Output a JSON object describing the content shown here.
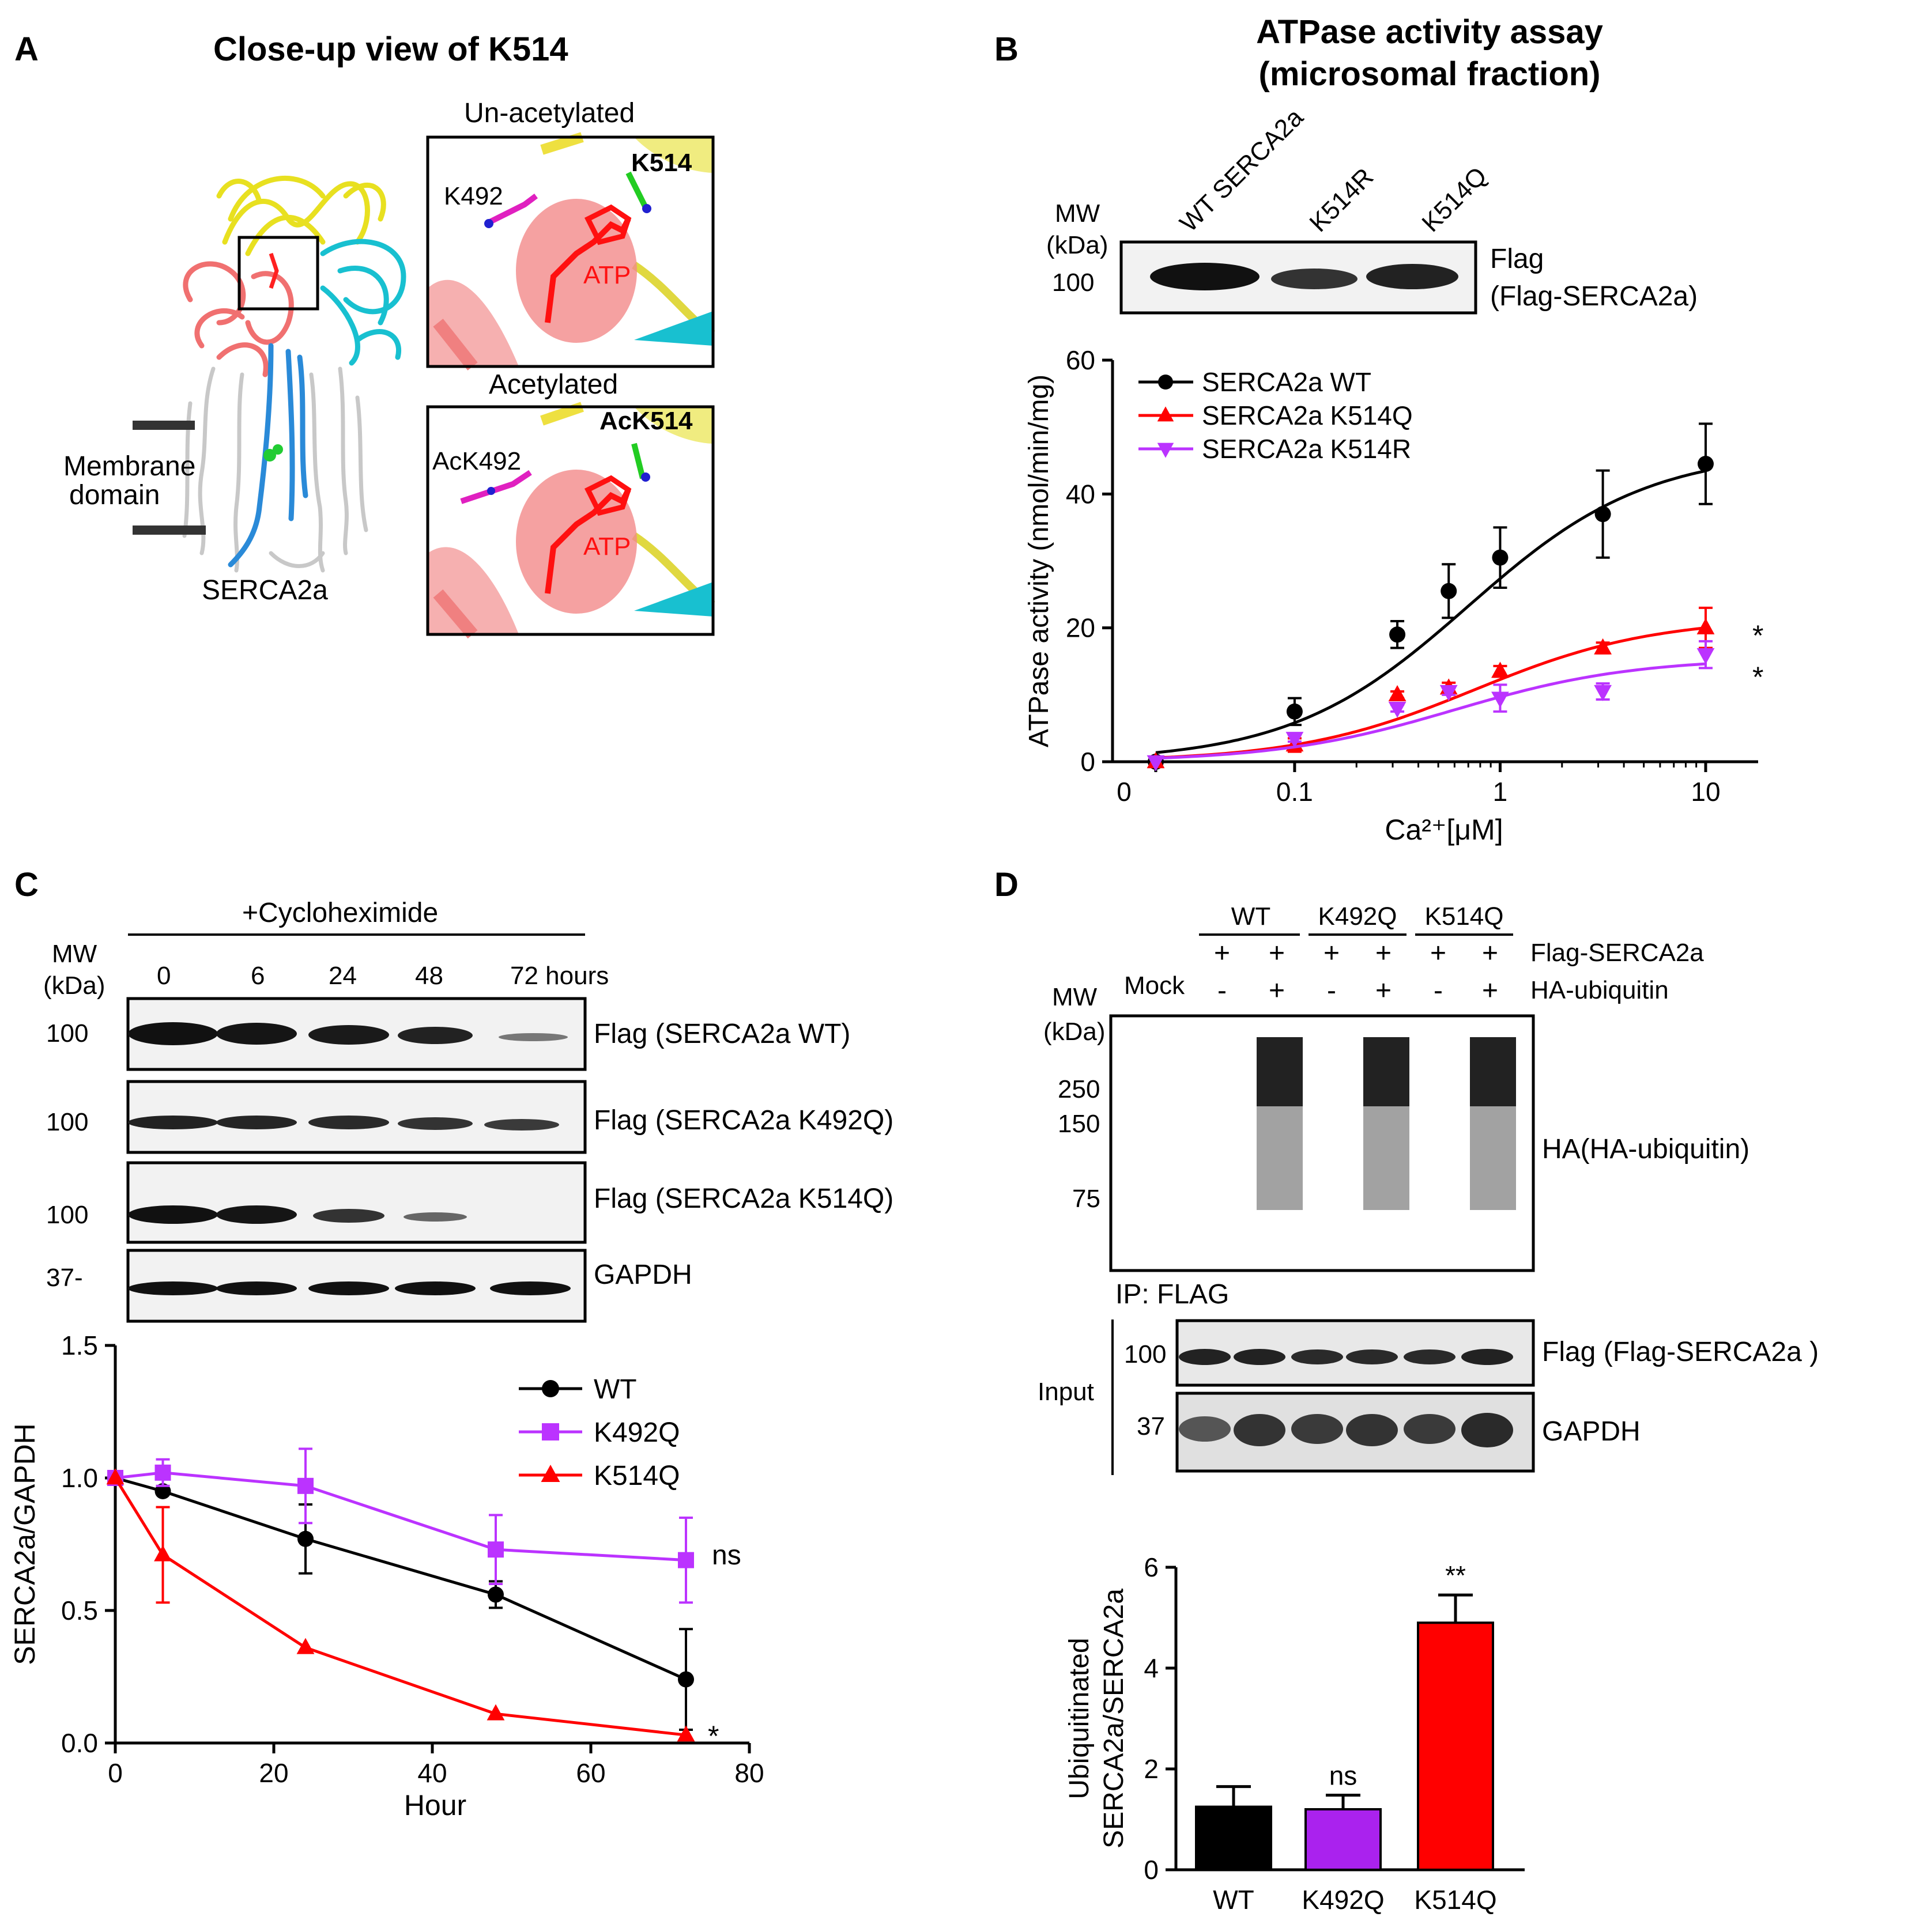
{
  "panels": {
    "A": {
      "letter": "A",
      "title": "Close-up view of K514",
      "membrane_label_1": "Membrane",
      "membrane_label_2": "domain",
      "protein_label": "SERCA2a",
      "top_box": {
        "title": "Un-acetylated",
        "res1": "K492",
        "res2": "K514",
        "ligand": "ATP"
      },
      "bottom_box": {
        "title": "Acetylated",
        "res1": "AcK492",
        "res2": "AcK514",
        "ligand": "ATP"
      }
    },
    "B": {
      "letter": "B",
      "title_line1": "ATPase activity assay",
      "title_line2": "(microsomal fraction)",
      "mw_label": "MW",
      "kda_label": "(kDa)",
      "mw_marker": "100",
      "lanes": [
        "WT SERCA2a",
        "K514R",
        "K514Q"
      ],
      "blot_label_1": "Flag",
      "blot_label_2": "(Flag-SERCA2a)"
    },
    "C": {
      "letter": "C",
      "treatment": "+Cycloheximide",
      "mw_label": "MW",
      "kda_label": "(kDa)",
      "timepoints": [
        "0",
        "6",
        "24",
        "48",
        "72 hours"
      ],
      "blots": [
        {
          "mw": "100",
          "label": "Flag (SERCA2a WT)"
        },
        {
          "mw": "100",
          "label": "Flag (SERCA2a K492Q)"
        },
        {
          "mw": "100",
          "label": "Flag (SERCA2a K514Q)"
        },
        {
          "mw": "37-",
          "label": "GAPDH"
        }
      ]
    },
    "D": {
      "letter": "D",
      "groups": [
        "WT",
        "K492Q",
        "K514Q"
      ],
      "row1_signs": [
        "+",
        "+",
        "+",
        "+",
        "+",
        "+"
      ],
      "row1_label": "Flag-SERCA2a",
      "mock_label": "Mock",
      "row2_signs": [
        "-",
        "+",
        "-",
        "+",
        "-",
        "+"
      ],
      "row2_label": "HA-ubiquitin",
      "mw_label": "MW",
      "kda_label": "(kDa)",
      "ip_markers": [
        "250",
        "150",
        "75"
      ],
      "ip_blot_label": "HA(HA-ubiquitin)",
      "ip_label": "IP: FLAG",
      "input_label": "Input",
      "input_markers": [
        "100",
        "37"
      ],
      "input_blot1_label": "Flag (Flag-SERCA2a )",
      "input_blot2_label": "GAPDH"
    }
  },
  "chart_data": [
    {
      "id": "B",
      "type": "line",
      "title": "",
      "xlabel": "Ca²⁺[μM]",
      "ylabel": "ATPase activity (nmol/min/mg)",
      "xscale": "log",
      "xlim": [
        0.013,
        18
      ],
      "ylim": [
        0,
        60
      ],
      "xtick_labels": [
        "0",
        "0.1",
        "1",
        "10"
      ],
      "ytick_labels": [
        "0",
        "20",
        "40",
        "60"
      ],
      "x": [
        0.0211,
        0.1,
        0.316,
        0.562,
        1,
        3.16,
        10
      ],
      "series": [
        {
          "name": "SERCA2a WT",
          "color": "#000000",
          "marker": "circle",
          "values": [
            0,
            7.5,
            19,
            25.5,
            30.5,
            37,
            44.5
          ],
          "errors": [
            0,
            2,
            2,
            4,
            4.5,
            6.5,
            6
          ],
          "fit": {
            "bottom": 0,
            "top": 46.5,
            "ec50": 0.7,
            "hill": 1.0
          }
        },
        {
          "name": "SERCA2a K514Q",
          "color": "#ff0000",
          "marker": "triangle-up",
          "values": [
            0,
            2.5,
            10,
            11,
            13.5,
            17,
            20
          ],
          "errors": [
            0,
            1,
            0.5,
            0.8,
            0.8,
            0.8,
            3
          ],
          "fit": {
            "bottom": 0,
            "top": 21.5,
            "ec50": 0.75,
            "hill": 1.0
          }
        },
        {
          "name": "SERCA2a K514R",
          "color": "#bb33ff",
          "marker": "triangle-down",
          "values": [
            0,
            3.5,
            8,
            10.5,
            9.5,
            10.5,
            16
          ],
          "errors": [
            0,
            0.5,
            0.5,
            0.5,
            2,
            1.2,
            2
          ],
          "fit": {
            "bottom": 0,
            "top": 15.5,
            "ec50": 0.6,
            "hill": 1.0
          }
        }
      ],
      "annotations": [
        "*",
        "*"
      ],
      "legend_position": "top-left"
    },
    {
      "id": "C",
      "type": "line",
      "title": "",
      "xlabel": "Hour",
      "ylabel": "SERCA2a/GAPDH",
      "xlim": [
        0,
        80
      ],
      "ylim": [
        0,
        1.5
      ],
      "xtick_labels": [
        "0",
        "20",
        "40",
        "60",
        "80"
      ],
      "ytick_labels": [
        "0.0",
        "0.5",
        "1.0",
        "1.5"
      ],
      "x": [
        0,
        6,
        24,
        48,
        72
      ],
      "series": [
        {
          "name": "WT",
          "color": "#000000",
          "marker": "circle",
          "values": [
            1.0,
            0.95,
            0.77,
            0.56,
            0.24
          ],
          "errors": [
            0,
            0,
            0.13,
            0.05,
            0.19
          ]
        },
        {
          "name": "K492Q",
          "color": "#bb33ff",
          "marker": "square",
          "values": [
            1.0,
            1.02,
            0.97,
            0.73,
            0.69
          ],
          "errors": [
            0,
            0.05,
            0.14,
            0.13,
            0.16
          ]
        },
        {
          "name": "K514Q",
          "color": "#ff0000",
          "marker": "triangle-up",
          "values": [
            1.0,
            0.71,
            0.36,
            0.11,
            0.03
          ],
          "errors": [
            0,
            0.18,
            0,
            0,
            0
          ]
        }
      ],
      "annotations": [
        "ns",
        "*"
      ],
      "legend_position": "top-right"
    },
    {
      "id": "D",
      "type": "bar",
      "title": "",
      "xlabel": "",
      "ylabel_line1": "Ubiquitinated",
      "ylabel_line2": "SERCA2a/SERCA2a",
      "ylim": [
        0,
        6
      ],
      "ytick_labels": [
        "0",
        "2",
        "4",
        "6"
      ],
      "categories": [
        "WT",
        "K492Q",
        "K514Q"
      ],
      "values": [
        1.25,
        1.2,
        4.9
      ],
      "errors": [
        0.4,
        0.28,
        0.55
      ],
      "colors": [
        "#000000",
        "#aa22ee",
        "#ff0000"
      ],
      "annotations": [
        "",
        "ns",
        "**"
      ]
    }
  ]
}
